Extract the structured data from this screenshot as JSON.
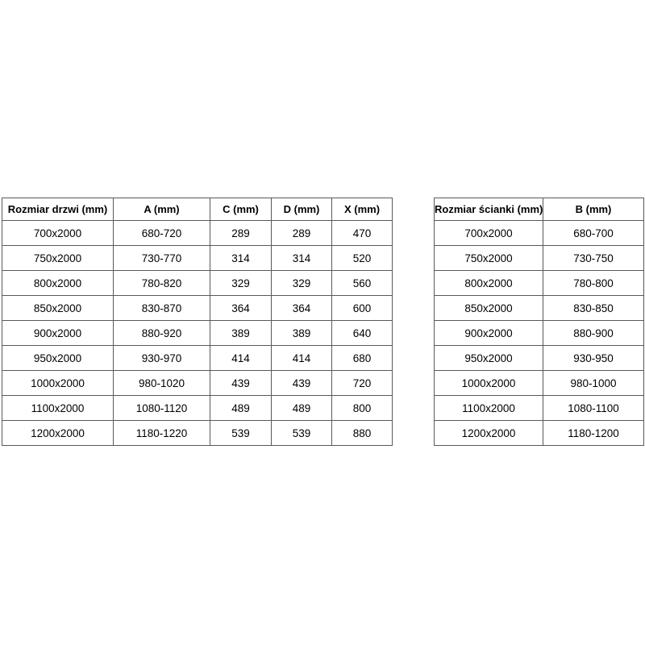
{
  "colors": {
    "background": "#ffffff",
    "table_border": "#595959",
    "text": "#000000"
  },
  "tables": [
    {
      "name": "door-sizes",
      "headers": [
        "Rozmiar drzwi (mm)",
        "A (mm)",
        "C (mm)",
        "D (mm)",
        "X (mm)"
      ],
      "rows": [
        [
          "700x2000",
          "680-720",
          "289",
          "289",
          "470"
        ],
        [
          "750x2000",
          "730-770",
          "314",
          "314",
          "520"
        ],
        [
          "800x2000",
          "780-820",
          "329",
          "329",
          "560"
        ],
        [
          "850x2000",
          "830-870",
          "364",
          "364",
          "600"
        ],
        [
          "900x2000",
          "880-920",
          "389",
          "389",
          "640"
        ],
        [
          "950x2000",
          "930-970",
          "414",
          "414",
          "680"
        ],
        [
          "1000x2000",
          "980-1020",
          "439",
          "439",
          "720"
        ],
        [
          "1100x2000",
          "1080-1120",
          "489",
          "489",
          "800"
        ],
        [
          "1200x2000",
          "1180-1220",
          "539",
          "539",
          "880"
        ]
      ]
    },
    {
      "name": "wall-sizes",
      "headers": [
        "Rozmiar ścianki (mm)",
        "B (mm)"
      ],
      "rows": [
        [
          "700x2000",
          "680-700"
        ],
        [
          "750x2000",
          "730-750"
        ],
        [
          "800x2000",
          "780-800"
        ],
        [
          "850x2000",
          "830-850"
        ],
        [
          "900x2000",
          "880-900"
        ],
        [
          "950x2000",
          "930-950"
        ],
        [
          "1000x2000",
          "980-1000"
        ],
        [
          "1100x2000",
          "1080-1100"
        ],
        [
          "1200x2000",
          "1180-1200"
        ]
      ]
    }
  ]
}
